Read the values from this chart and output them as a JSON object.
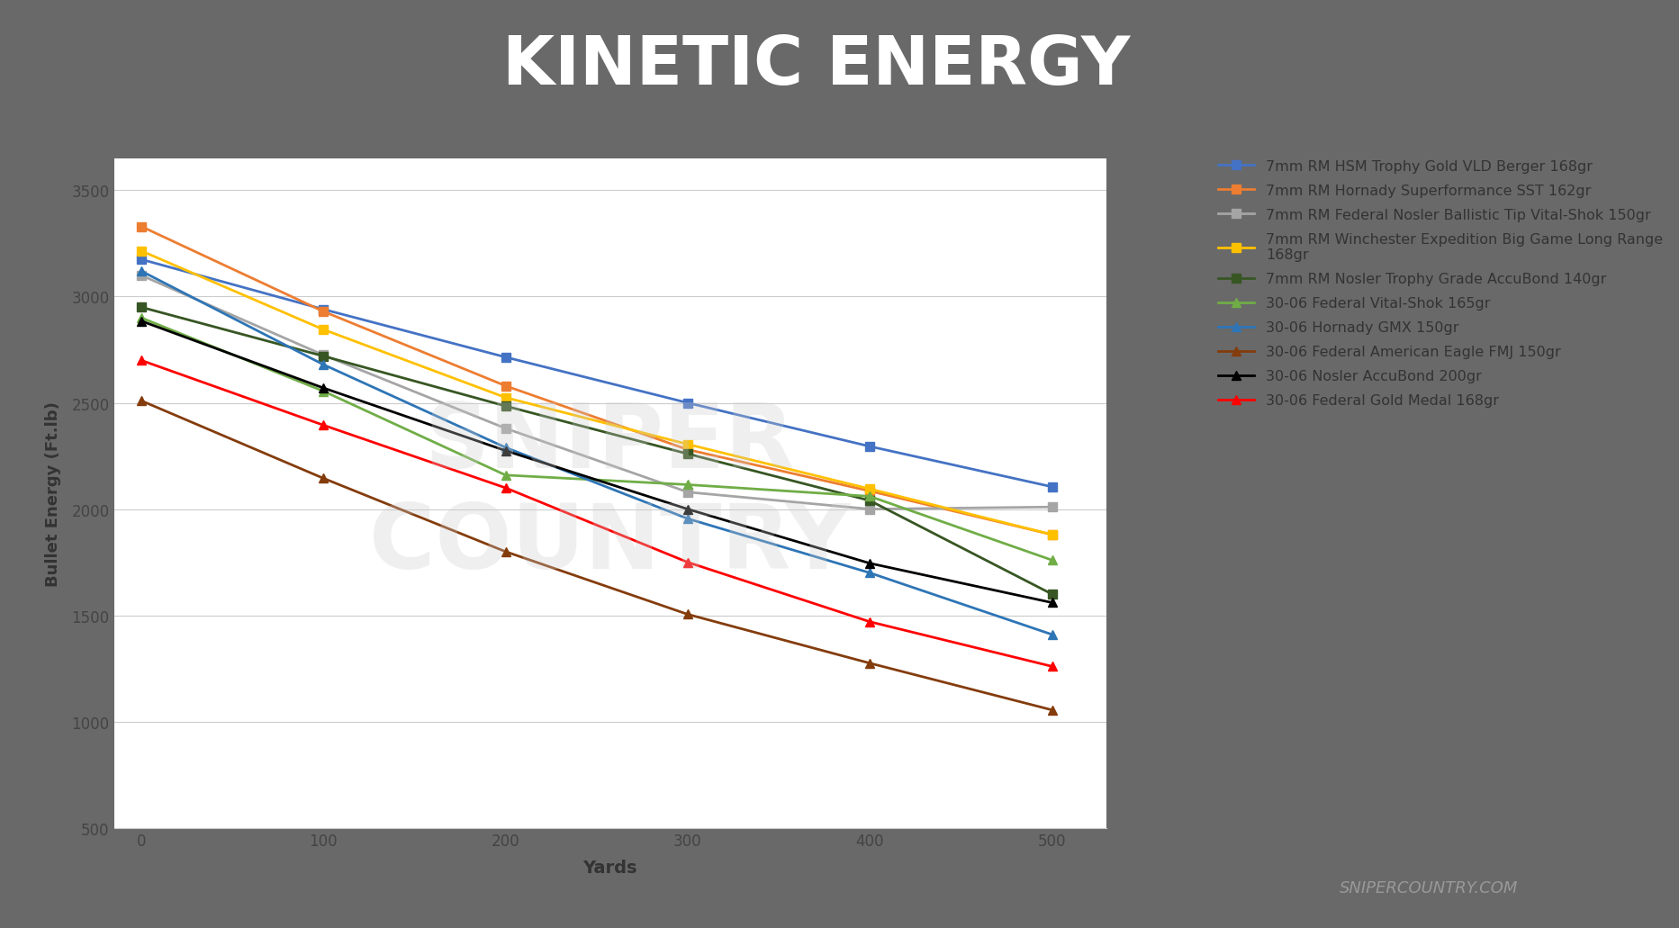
{
  "title": "KINETIC ENERGY",
  "xlabel": "Yards",
  "ylabel": "Bullet Energy (Ft.lb)",
  "xlim": [
    -15,
    530
  ],
  "ylim": [
    500,
    3650
  ],
  "yticks": [
    500,
    1000,
    1500,
    2000,
    2500,
    3000,
    3500
  ],
  "xticks": [
    0,
    100,
    200,
    300,
    400,
    500
  ],
  "header_bg": "#696969",
  "red_bar_color": "#E8605A",
  "chart_bg": "#FFFFFF",
  "footer_text": "SNIPERCOUNTRY.COM",
  "series": [
    {
      "label": "7mm RM HSM Trophy Gold VLD Berger 168gr",
      "color": "#4472C4",
      "marker": "s",
      "values": [
        3175,
        2940,
        2715,
        2500,
        2295,
        2105
      ]
    },
    {
      "label": "7mm RM Hornady Superformance SST 162gr",
      "color": "#ED7D31",
      "marker": "s",
      "values": [
        3330,
        2930,
        2580,
        2280,
        2085,
        1880
      ]
    },
    {
      "label": "7mm RM Federal Nosler Ballistic Tip Vital-Shok 150gr",
      "color": "#A5A5A5",
      "marker": "s",
      "values": [
        3100,
        2725,
        2380,
        2080,
        2000,
        2010
      ]
    },
    {
      "label": "7mm RM Winchester Expedition Big Game Long Range\n168gr",
      "color": "#FFC000",
      "marker": "s",
      "values": [
        3215,
        2845,
        2525,
        2305,
        2095,
        1880
      ]
    },
    {
      "label": "7mm RM Nosler Trophy Grade AccuBond 140gr",
      "color": "#375623",
      "marker": "s",
      "values": [
        2950,
        2720,
        2485,
        2260,
        2040,
        1600
      ]
    },
    {
      "label": "30-06 Federal Vital-Shok 165gr",
      "color": "#70AD47",
      "marker": "^",
      "values": [
        2900,
        2555,
        2160,
        2115,
        2060,
        1760
      ]
    },
    {
      "label": "30-06 Hornady GMX 150gr",
      "color": "#2E75B6",
      "marker": "^",
      "values": [
        3120,
        2680,
        2290,
        1955,
        1700,
        1410
      ]
    },
    {
      "label": "30-06 Federal American Eagle FMJ 150gr",
      "color": "#843C0C",
      "marker": "^",
      "values": [
        2510,
        2145,
        1800,
        1505,
        1275,
        1055
      ]
    },
    {
      "label": "30-06 Nosler AccuBond 200gr",
      "color": "#000000",
      "marker": "^",
      "values": [
        2885,
        2570,
        2275,
        2000,
        1745,
        1560
      ]
    },
    {
      "label": "30-06 Federal Gold Medal 168gr",
      "color": "#FF0000",
      "marker": "^",
      "values": [
        2700,
        2395,
        2100,
        1750,
        1470,
        1260
      ]
    }
  ]
}
